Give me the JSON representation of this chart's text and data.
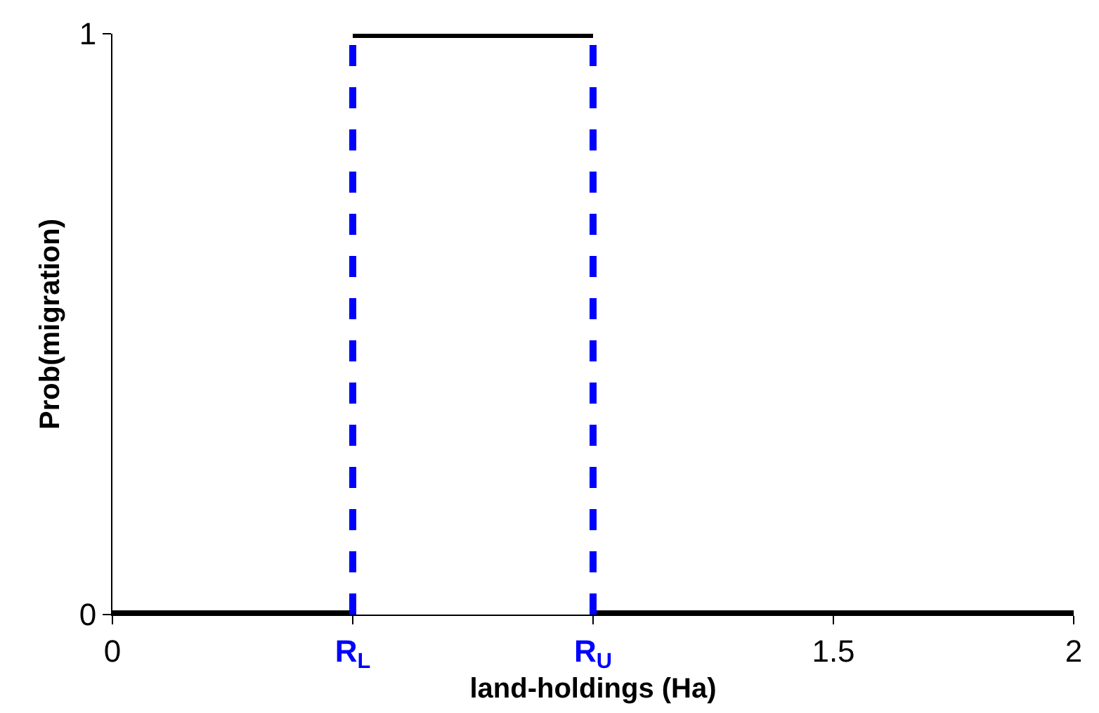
{
  "chart_data": {
    "type": "line",
    "xlabel": "land-holdings (Ha)",
    "ylabel": "Prob(migration)",
    "series": [
      {
        "color": "#000000",
        "x": [
          0,
          0.5
        ],
        "values": [
          0,
          0
        ]
      },
      {
        "color": "#000000",
        "x": [
          0.5,
          1
        ],
        "values": [
          1,
          1
        ]
      },
      {
        "color": "#000000",
        "x": [
          1,
          2
        ],
        "values": [
          0,
          0
        ]
      }
    ],
    "xlim": [
      0,
      2
    ],
    "xticks": [
      0,
      {
        "value": 0.5,
        "label": "R$_{L}$"
      },
      {
        "value": 1,
        "label": "R$_{U}$"
      },
      1.5,
      2
    ],
    "ylim": [
      0,
      1
    ],
    "yticks": [
      0,
      1
    ],
    "ref_lines": [
      {
        "axis": "x",
        "value": 0.5,
        "color": "#0000ff",
        "line_style": "dashed"
      },
      {
        "axis": "x",
        "value": 1,
        "color": "#0000ff",
        "line_style": "dashed"
      }
    ],
    "marker": "none",
    "line_style": "solid"
  }
}
